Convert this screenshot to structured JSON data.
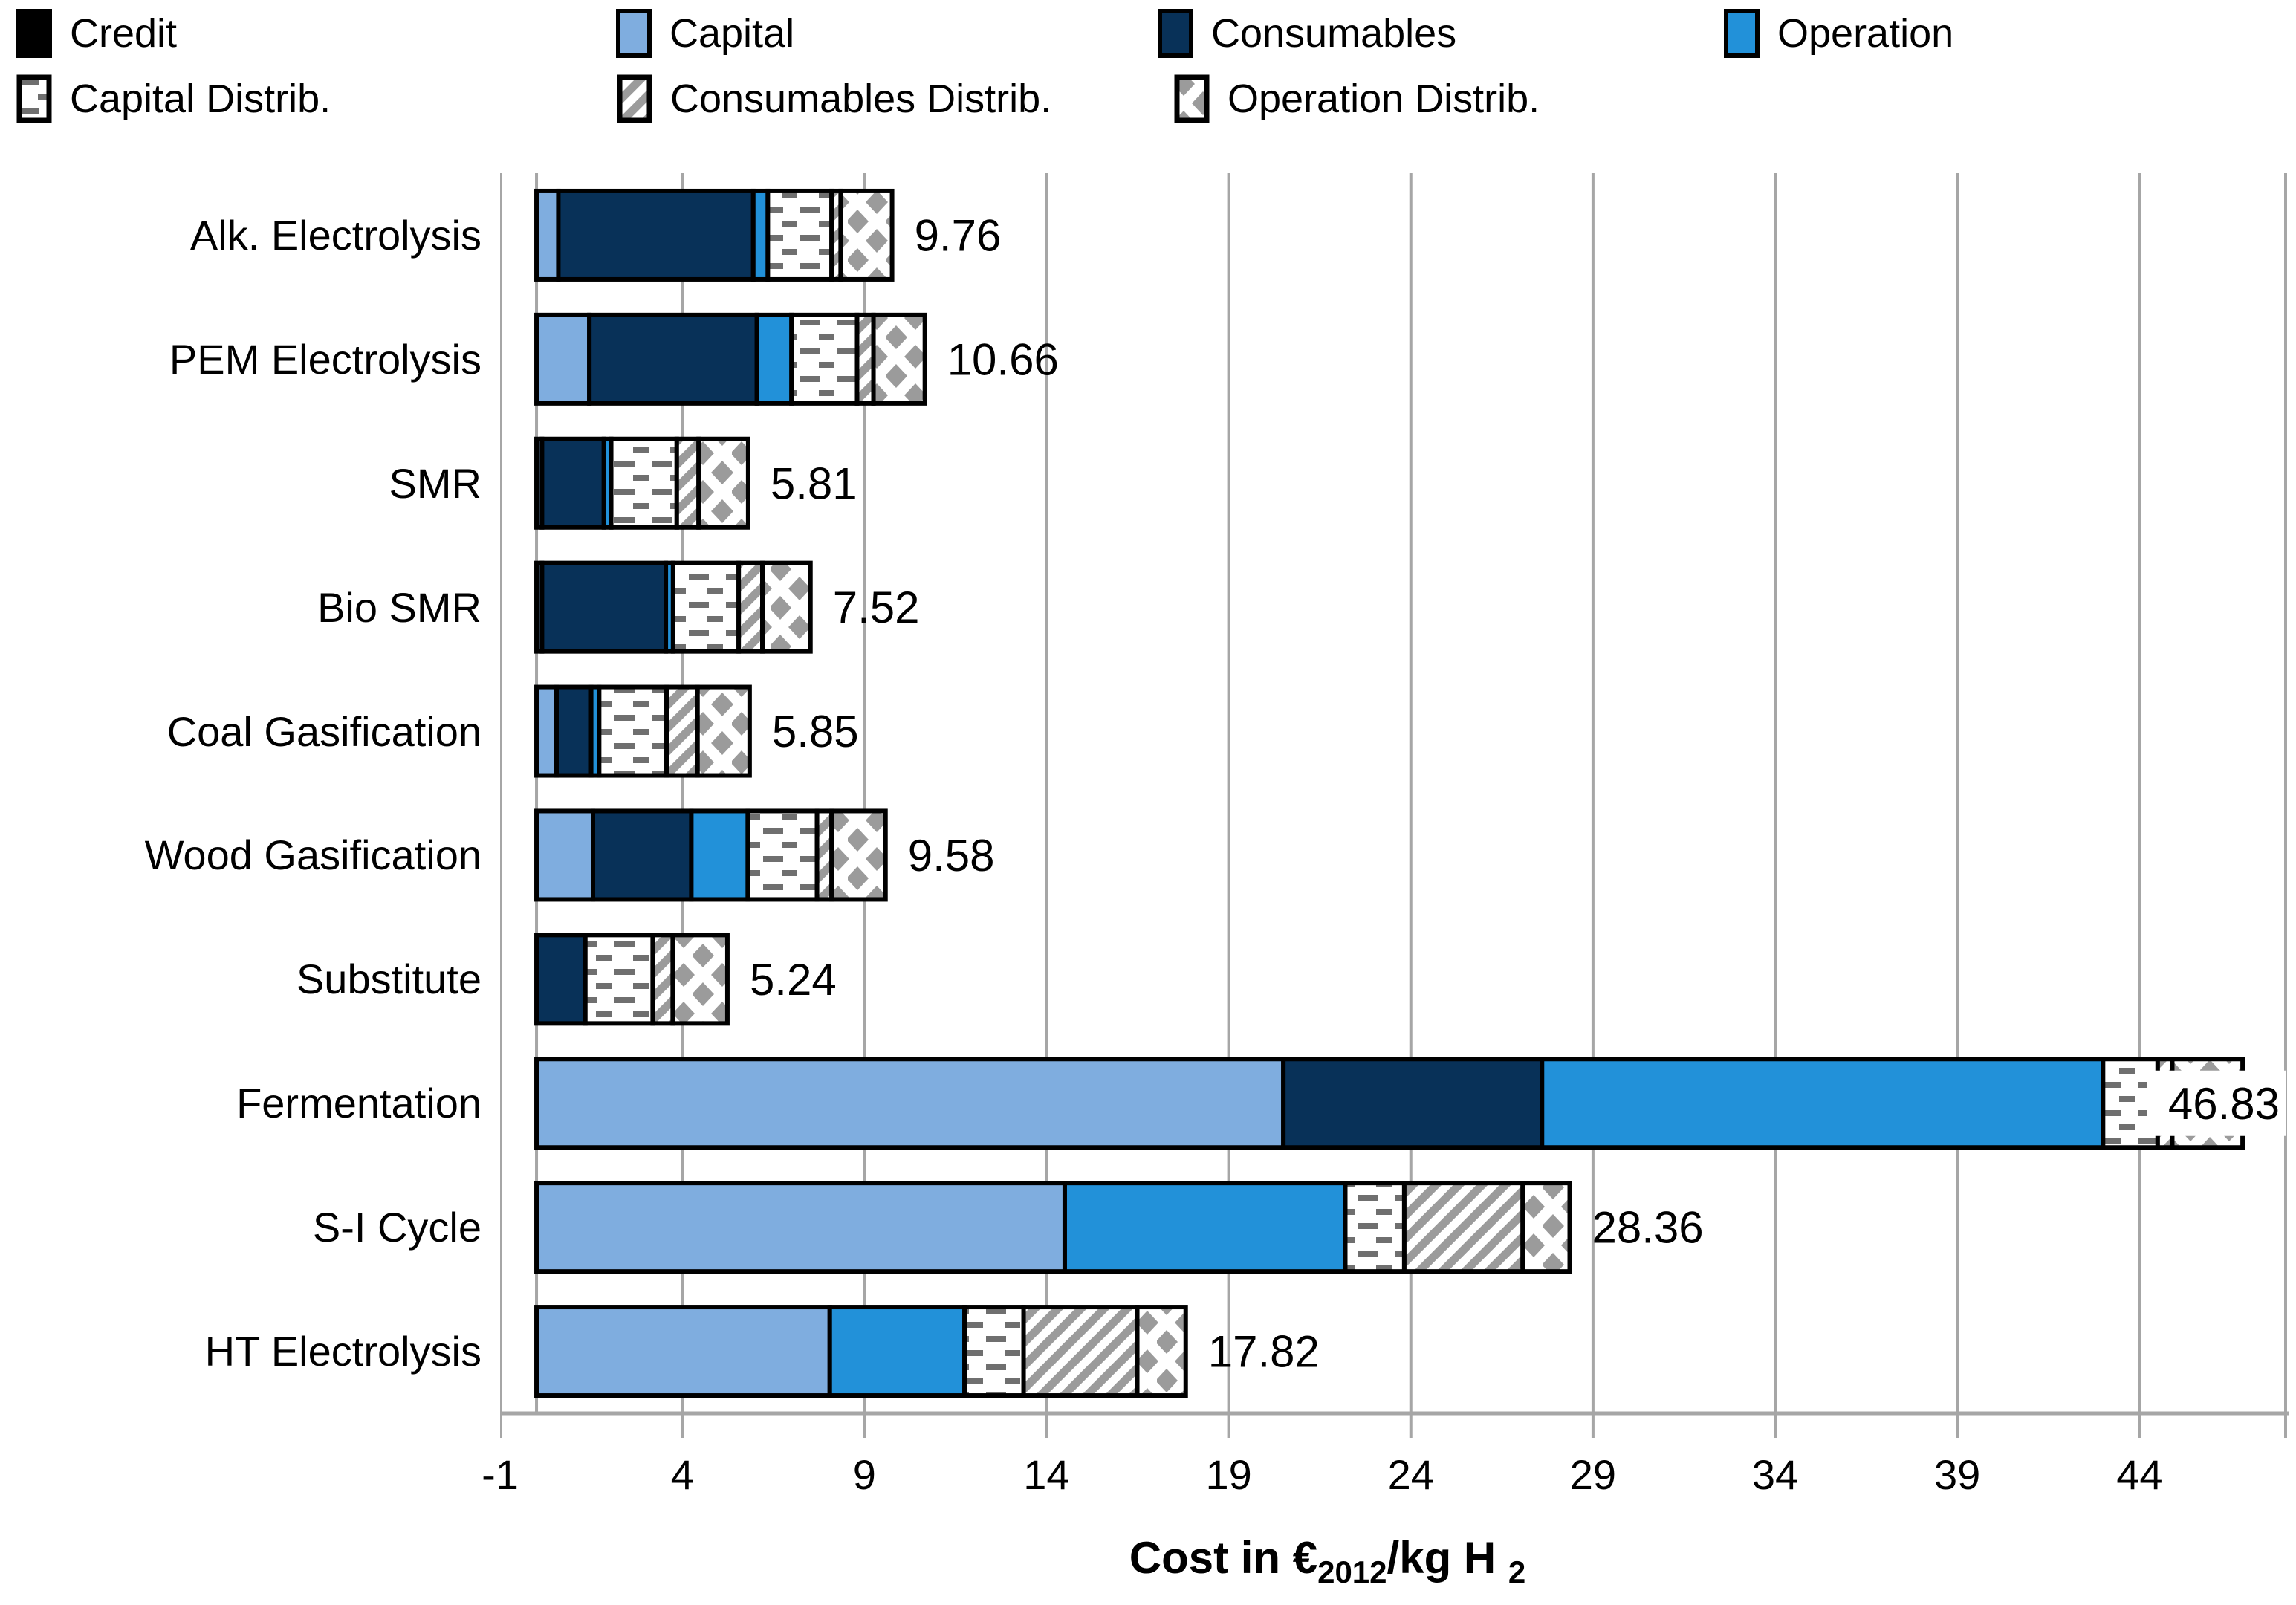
{
  "legend": {
    "items": [
      {
        "label": "Credit",
        "swatch": "credit"
      },
      {
        "label": "Capital",
        "swatch": "capital"
      },
      {
        "label": "Consumables",
        "swatch": "consumables"
      },
      {
        "label": "Operation",
        "swatch": "operation"
      },
      {
        "label": "Capital Distrib.",
        "swatch": "capital-distrib"
      },
      {
        "label": "Consumables Distrib.",
        "swatch": "consumables-distrib"
      },
      {
        "label": "Operation Distrib.",
        "swatch": "operation-distrib"
      }
    ]
  },
  "axis": {
    "title_prefix": "Cost in €",
    "title_sub1": "2012",
    "title_mid": "/kg H",
    "title_sub2": "2"
  },
  "colors": {
    "credit": "#000000",
    "capital": "#7FADDF",
    "consumables": "#083158",
    "operation": "#2291D9",
    "pattern_gray": "#9B9B9B",
    "dash_gray": "#6F6F6F",
    "gridline": "#A6A6A6",
    "text": "#000000"
  },
  "chart_data": {
    "type": "bar",
    "orientation": "horizontal",
    "xlabel": "Cost in €2012/kg H2",
    "xlim": [
      -1,
      47.65
    ],
    "x_ticks": [
      -1,
      4,
      9,
      14,
      19,
      24,
      29,
      34,
      39,
      44
    ],
    "grid": true,
    "legend_position": "top",
    "categories": [
      "Alk. Electrolysis",
      "PEM Electrolysis",
      "SMR",
      "Bio SMR",
      "Coal Gasification",
      "Wood Gasification",
      "Substitute",
      "Fermentation",
      "S-I Cycle",
      "HT Electrolysis"
    ],
    "series": [
      {
        "name": "Credit",
        "style": "credit",
        "values": [
          0,
          0,
          0,
          0,
          0,
          0,
          0,
          0,
          0,
          0
        ]
      },
      {
        "name": "Capital",
        "style": "capital",
        "values": [
          0.6,
          1.45,
          0.15,
          0.15,
          0.55,
          1.55,
          0,
          20.5,
          14.5,
          8.05
        ]
      },
      {
        "name": "Consumables",
        "style": "consumables",
        "values": [
          5.35,
          4.6,
          1.7,
          3.4,
          0.95,
          2.7,
          1.34,
          7.1,
          0,
          0
        ]
      },
      {
        "name": "Operation",
        "style": "operation",
        "values": [
          0.4,
          0.95,
          0.2,
          0.2,
          0.22,
          1.55,
          0,
          15.4,
          7.7,
          3.7
        ]
      },
      {
        "name": "Capital Distrib.",
        "style": "capital-distrib",
        "values": [
          1.75,
          1.8,
          1.8,
          1.8,
          1.85,
          1.9,
          1.85,
          1.5,
          1.62,
          1.62
        ]
      },
      {
        "name": "Consumables Distrib.",
        "style": "consumables-distrib",
        "values": [
          0.25,
          0.45,
          0.6,
          0.65,
          0.85,
          0.4,
          0.55,
          0.4,
          3.25,
          3.12
        ]
      },
      {
        "name": "Operation Distrib.",
        "style": "operation-distrib",
        "values": [
          1.41,
          1.41,
          1.36,
          1.32,
          1.43,
          1.48,
          1.5,
          1.93,
          1.29,
          1.33
        ]
      }
    ],
    "total_labels": [
      "9.76",
      "10.66",
      "5.81",
      "7.52",
      "5.85",
      "9.58",
      "5.24",
      "46.83",
      "28.36",
      "17.82"
    ]
  }
}
